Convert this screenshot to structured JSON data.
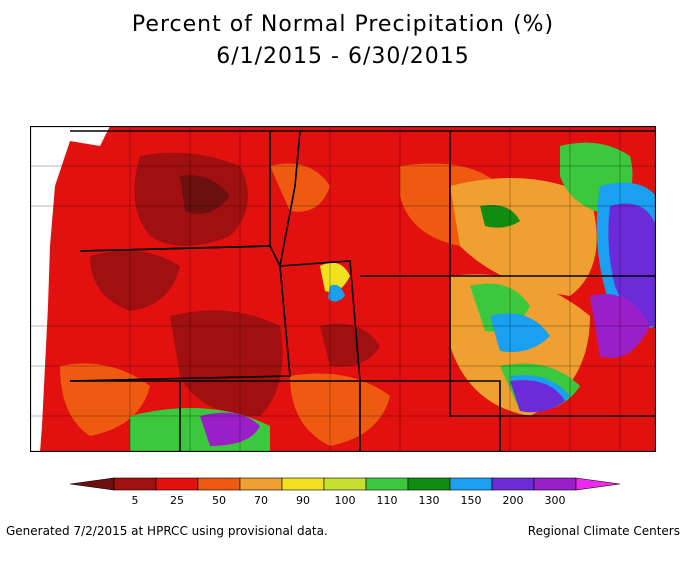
{
  "title": "Percent of Normal Precipitation (%)",
  "date_range": "6/1/2015 - 6/30/2015",
  "legend": {
    "breaks": [
      "5",
      "25",
      "50",
      "70",
      "90",
      "100",
      "110",
      "130",
      "150",
      "200",
      "300"
    ],
    "colors": [
      "#6b0f0f",
      "#a01010",
      "#e31010",
      "#ee5a10",
      "#f0a030",
      "#f0e020",
      "#c8e030",
      "#3cc83c",
      "#108c10",
      "#19a0f0",
      "#6b2bd8",
      "#9b1fc8",
      "#ee28ee"
    ]
  },
  "footer_left": "Generated 7/2/2015 at HPRCC using provisional data.",
  "footer_right": "Regional Climate Centers"
}
